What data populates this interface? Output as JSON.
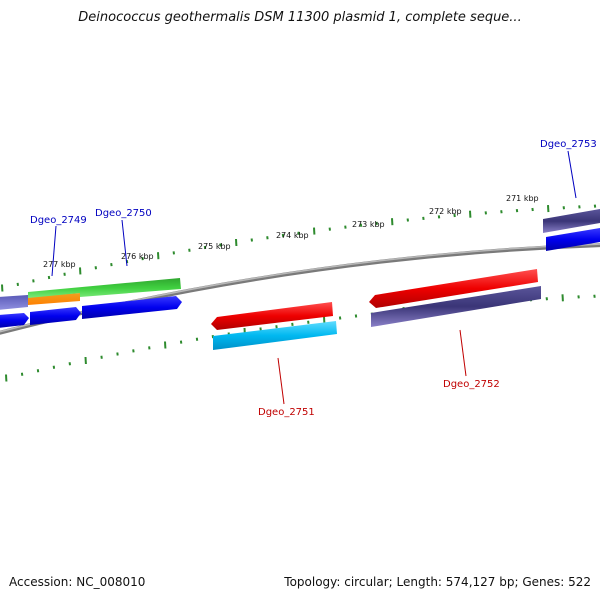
{
  "title": "Deinococcus geothermalis DSM 11300 plasmid 1, complete seque...",
  "accession": "Accession: NC_008010",
  "summary": "Topology: circular; Length: 574,127 bp; Genes: 522",
  "colors": {
    "backbone": "#8a8a8a",
    "ticks": "#2e8b2e",
    "label_forward": "#0000c0",
    "label_reverse": "#c00000"
  },
  "tick_labels": [
    "277 kbp",
    "276 kbp",
    "275 kbp",
    "274 kbp",
    "273 kbp",
    "272 kbp",
    "271 kbp"
  ],
  "genes": [
    {
      "label": "Dgeo_2749",
      "strand": "forward",
      "color": "#0000c0"
    },
    {
      "label": "Dgeo_2750",
      "strand": "forward",
      "color": "#0000c0"
    },
    {
      "label": "Dgeo_2751",
      "strand": "reverse",
      "color": "#c00000"
    },
    {
      "label": "Dgeo_2752",
      "strand": "reverse",
      "color": "#c00000"
    },
    {
      "label": "Dgeo_2753",
      "strand": "forward",
      "color": "#0000c0"
    }
  ]
}
